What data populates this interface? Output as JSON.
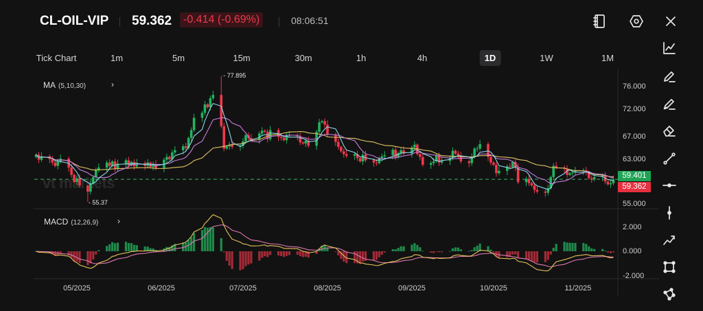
{
  "header": {
    "symbol": "CL-OIL-VIP",
    "price": "59.362",
    "change": "-0.414 (-0.69%)",
    "time": "08:06:51",
    "icons": [
      "notebook-icon",
      "settings-icon",
      "close-icon"
    ]
  },
  "timeframes": [
    {
      "label": "Tick Chart",
      "active": false
    },
    {
      "label": "1m",
      "active": false
    },
    {
      "label": "5m",
      "active": false
    },
    {
      "label": "15m",
      "active": false
    },
    {
      "label": "30m",
      "active": false
    },
    {
      "label": "1h",
      "active": false
    },
    {
      "label": "4h",
      "active": false
    },
    {
      "label": "1D",
      "active": true
    },
    {
      "label": "1W",
      "active": false
    },
    {
      "label": "1M",
      "active": false
    }
  ],
  "toolbar": [
    "line-chart-icon",
    "pencil-icon",
    "highlighter-icon",
    "eraser-icon",
    "trend-line-icon",
    "horizontal-line-icon",
    "vertical-line-icon",
    "zigzag-icon",
    "rectangle-icon",
    "polygon-icon"
  ],
  "indicators": {
    "ma_label": "MA",
    "ma_params": "(5,10,30)",
    "macd_label": "MACD",
    "macd_params": "(12,26,9)"
  },
  "watermark": "vt markets",
  "colors": {
    "up": "#22b35e",
    "down": "#f0384b",
    "ma5": "#8fd6ea",
    "ma10": "#c77dde",
    "ma30": "#e2c766",
    "dif": "#e6c35c",
    "dea": "#e07ab0",
    "background": "#121212"
  },
  "chart_data": {
    "type": "candlestick",
    "price_axis": {
      "ticks": [
        "76.000",
        "72.000",
        "67.000",
        "63.000",
        "55.000"
      ],
      "tick_values": [
        76,
        72,
        67,
        63,
        55
      ]
    },
    "macd_axis": {
      "ticks": [
        "2.000",
        "0.000",
        "-2.000"
      ],
      "tick_values": [
        2,
        0,
        -2
      ]
    },
    "x_ticks": [
      {
        "label": "05/2025",
        "date": "2025-05-01"
      },
      {
        "label": "06/2025",
        "date": "2025-06-01"
      },
      {
        "label": "07/2025",
        "date": "2025-07-01"
      },
      {
        "label": "08/2025",
        "date": "2025-08-01"
      },
      {
        "label": "09/2025",
        "date": "2025-09-01"
      },
      {
        "label": "10/2025",
        "date": "2025-10-01"
      },
      {
        "label": "11/2025",
        "date": "2025-11-01"
      }
    ],
    "high_label": "77.895",
    "low_label": "55.37",
    "bid_tag": "59.401",
    "last_tag": "59.362",
    "moving_averages": [
      5,
      10,
      30
    ],
    "macd_params": [
      12,
      26,
      9
    ],
    "candles_date_close": [
      [
        "2025-04-16",
        63.8
      ],
      [
        "2025-04-17",
        62.9
      ],
      [
        "2025-04-18",
        63.5
      ],
      [
        "2025-04-21",
        63.0
      ],
      [
        "2025-04-22",
        62.4
      ],
      [
        "2025-04-23",
        61.8
      ],
      [
        "2025-04-24",
        62.6
      ],
      [
        "2025-04-25",
        63.1
      ],
      [
        "2025-04-28",
        61.5
      ],
      [
        "2025-04-29",
        60.2
      ],
      [
        "2025-04-30",
        58.9
      ],
      [
        "2025-05-01",
        59.6
      ],
      [
        "2025-05-02",
        58.3
      ],
      [
        "2025-05-05",
        57.2,
        57.9,
        55.37
      ],
      [
        "2025-05-06",
        58.6
      ],
      [
        "2025-05-07",
        59.8
      ],
      [
        "2025-05-08",
        61.0
      ],
      [
        "2025-05-09",
        61.5
      ],
      [
        "2025-05-12",
        62.4
      ],
      [
        "2025-05-13",
        61.8
      ],
      [
        "2025-05-14",
        62.6
      ],
      [
        "2025-05-15",
        61.3
      ],
      [
        "2025-05-16",
        62.2
      ],
      [
        "2025-05-19",
        62.8
      ],
      [
        "2025-05-20",
        61.9
      ],
      [
        "2025-05-21",
        62.5
      ],
      [
        "2025-05-22",
        61.7
      ],
      [
        "2025-05-23",
        62.3
      ],
      [
        "2025-05-26",
        61.8
      ],
      [
        "2025-05-27",
        62.4
      ],
      [
        "2025-05-28",
        61.6
      ],
      [
        "2025-05-29",
        62.1
      ],
      [
        "2025-05-30",
        61.4
      ],
      [
        "2025-06-02",
        62.9
      ],
      [
        "2025-06-03",
        63.4
      ],
      [
        "2025-06-04",
        63.0
      ],
      [
        "2025-06-05",
        64.2
      ],
      [
        "2025-06-06",
        64.6
      ],
      [
        "2025-06-09",
        65.3
      ],
      [
        "2025-06-10",
        65.0
      ],
      [
        "2025-06-11",
        66.8
      ],
      [
        "2025-06-12",
        68.2
      ],
      [
        "2025-06-13",
        70.4
      ],
      [
        "2025-06-16",
        71.3
      ],
      [
        "2025-06-17",
        72.8
      ],
      [
        "2025-06-18",
        72.3
      ],
      [
        "2025-06-19",
        73.9
      ],
      [
        "2025-06-20",
        74.5
      ],
      [
        "2025-06-23",
        68.9,
        77.895,
        68.5
      ],
      [
        "2025-06-24",
        64.9
      ],
      [
        "2025-06-25",
        65.3
      ],
      [
        "2025-06-26",
        65.6
      ],
      [
        "2025-06-27",
        65.2
      ],
      [
        "2025-06-30",
        65.4
      ],
      [
        "2025-07-01",
        66.2
      ],
      [
        "2025-07-02",
        67.3
      ],
      [
        "2025-07-03",
        66.8
      ],
      [
        "2025-07-04",
        66.5
      ],
      [
        "2025-07-07",
        67.6
      ],
      [
        "2025-07-08",
        68.1
      ],
      [
        "2025-07-09",
        67.9
      ],
      [
        "2025-07-10",
        66.6
      ],
      [
        "2025-07-11",
        68.2
      ],
      [
        "2025-07-14",
        67.0
      ],
      [
        "2025-07-15",
        66.8
      ],
      [
        "2025-07-16",
        66.4
      ],
      [
        "2025-07-17",
        67.2
      ],
      [
        "2025-07-18",
        67.3
      ],
      [
        "2025-07-21",
        67.1
      ],
      [
        "2025-07-22",
        66.0
      ],
      [
        "2025-07-23",
        65.8
      ],
      [
        "2025-07-24",
        66.3
      ],
      [
        "2025-07-25",
        65.4
      ],
      [
        "2025-07-28",
        67.9
      ],
      [
        "2025-07-29",
        69.6
      ],
      [
        "2025-07-30",
        69.8
      ],
      [
        "2025-07-31",
        69.2
      ],
      [
        "2025-08-01",
        67.4
      ],
      [
        "2025-08-04",
        66.1
      ],
      [
        "2025-08-05",
        65.2
      ],
      [
        "2025-08-06",
        64.4
      ],
      [
        "2025-08-07",
        63.9
      ],
      [
        "2025-08-08",
        63.6
      ],
      [
        "2025-08-11",
        63.9
      ],
      [
        "2025-08-12",
        63.2
      ],
      [
        "2025-08-13",
        62.6
      ],
      [
        "2025-08-14",
        63.8
      ],
      [
        "2025-08-15",
        62.8
      ],
      [
        "2025-08-18",
        62.4
      ],
      [
        "2025-08-19",
        62.3
      ],
      [
        "2025-08-20",
        63.2
      ],
      [
        "2025-08-21",
        63.5
      ],
      [
        "2025-08-22",
        63.7
      ],
      [
        "2025-08-25",
        64.7
      ],
      [
        "2025-08-26",
        63.3
      ],
      [
        "2025-08-27",
        64.1
      ],
      [
        "2025-08-28",
        64.6
      ],
      [
        "2025-08-29",
        64.0
      ],
      [
        "2025-09-01",
        65.1
      ],
      [
        "2025-09-02",
        65.6
      ],
      [
        "2025-09-03",
        63.9
      ],
      [
        "2025-09-04",
        63.4
      ],
      [
        "2025-09-05",
        62.0
      ],
      [
        "2025-09-08",
        62.3
      ],
      [
        "2025-09-09",
        62.6
      ],
      [
        "2025-09-10",
        63.7
      ],
      [
        "2025-09-11",
        62.4
      ],
      [
        "2025-09-12",
        62.7
      ],
      [
        "2025-09-15",
        63.3
      ],
      [
        "2025-09-16",
        64.5
      ],
      [
        "2025-09-17",
        64.0
      ],
      [
        "2025-09-18",
        63.6
      ],
      [
        "2025-09-19",
        62.6
      ],
      [
        "2025-09-22",
        62.3
      ],
      [
        "2025-09-23",
        63.4
      ],
      [
        "2025-09-24",
        64.9
      ],
      [
        "2025-09-25",
        64.9
      ],
      [
        "2025-09-26",
        65.7
      ],
      [
        "2025-09-29",
        63.4
      ],
      [
        "2025-09-30",
        62.4
      ],
      [
        "2025-10-01",
        62.0
      ],
      [
        "2025-10-02",
        60.5
      ],
      [
        "2025-10-03",
        60.9
      ],
      [
        "2025-10-06",
        61.7
      ],
      [
        "2025-10-07",
        61.6
      ],
      [
        "2025-10-08",
        62.5
      ],
      [
        "2025-10-09",
        61.5
      ],
      [
        "2025-10-10",
        58.9
      ],
      [
        "2025-10-13",
        59.5
      ],
      [
        "2025-10-14",
        58.7
      ],
      [
        "2025-10-15",
        58.3
      ],
      [
        "2025-10-16",
        57.5
      ],
      [
        "2025-10-17",
        57.2
      ],
      [
        "2025-10-20",
        57.0
      ],
      [
        "2025-10-21",
        57.8
      ],
      [
        "2025-10-22",
        59.8
      ],
      [
        "2025-10-23",
        61.8
      ],
      [
        "2025-10-24",
        61.5
      ],
      [
        "2025-10-27",
        61.3
      ],
      [
        "2025-10-28",
        60.2
      ],
      [
        "2025-10-29",
        60.5
      ],
      [
        "2025-10-30",
        60.6
      ],
      [
        "2025-10-31",
        60.9
      ],
      [
        "2025-11-03",
        61.0
      ],
      [
        "2025-11-04",
        60.6
      ],
      [
        "2025-11-05",
        59.6
      ],
      [
        "2025-11-06",
        59.4
      ],
      [
        "2025-11-07",
        59.8
      ],
      [
        "2025-11-10",
        60.1
      ],
      [
        "2025-11-11",
        59.0
      ],
      [
        "2025-11-12",
        58.5
      ],
      [
        "2025-11-13",
        58.7
      ],
      [
        "2025-11-14",
        59.362
      ]
    ]
  }
}
